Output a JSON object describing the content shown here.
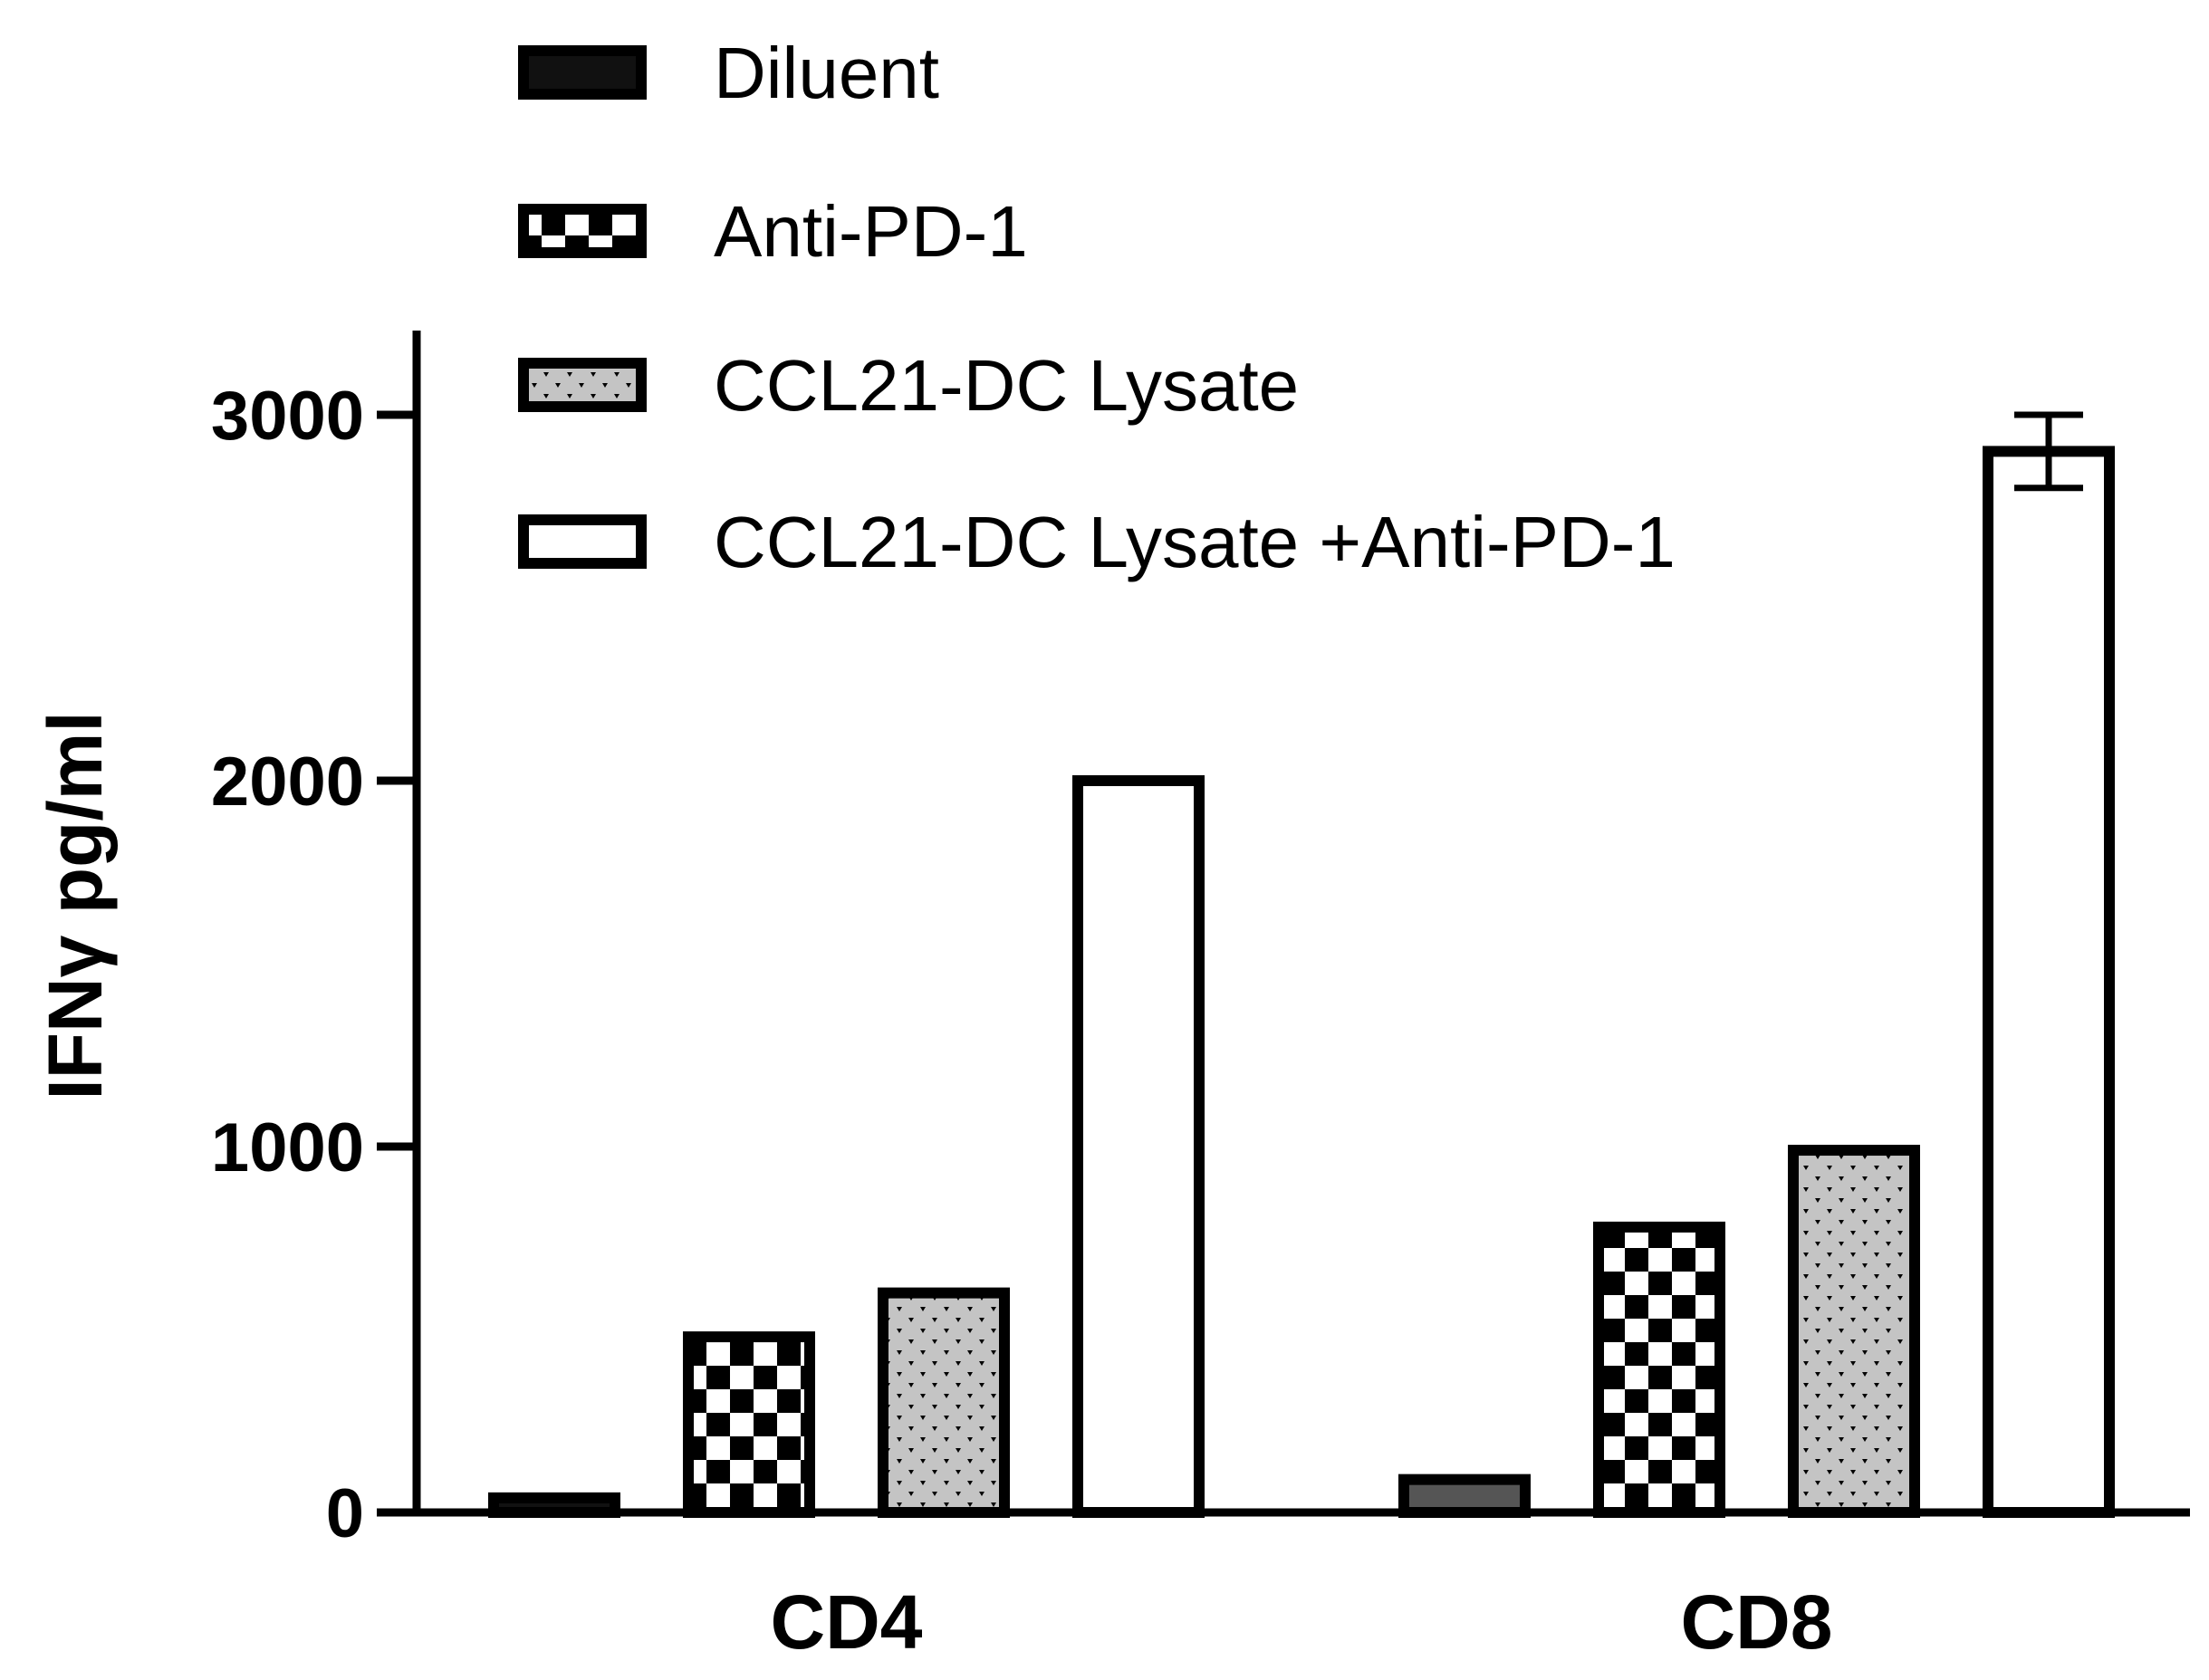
{
  "chart_data": {
    "type": "bar",
    "categories": [
      "CD4",
      "CD8"
    ],
    "ylabel": "IFNγ pg/ml",
    "ylim": [
      0,
      3000
    ],
    "yticks": [
      "0",
      "1000",
      "2000",
      "3000"
    ],
    "series": [
      {
        "name": "Diluent",
        "values": [
          40,
          90
        ],
        "errors": [
          0,
          0
        ],
        "pattern": "solid-black"
      },
      {
        "name": "Anti-PD-1",
        "values": [
          480,
          780
        ],
        "errors": [
          0,
          0
        ],
        "pattern": "checker"
      },
      {
        "name": "CCL21-DC  Lysate",
        "values": [
          600,
          990
        ],
        "errors": [
          0,
          0
        ],
        "pattern": "dots"
      },
      {
        "name": "CCL21-DC  Lysate +Anti-PD-1",
        "values": [
          2000,
          2900
        ],
        "errors": [
          0,
          100
        ],
        "pattern": "white"
      }
    ],
    "grid": false,
    "legend_position": "top"
  },
  "colors": {
    "ink": "#000000",
    "dots": "#bdbdbd",
    "checker_light": "#ffffff",
    "dark_fill": "#555555"
  }
}
